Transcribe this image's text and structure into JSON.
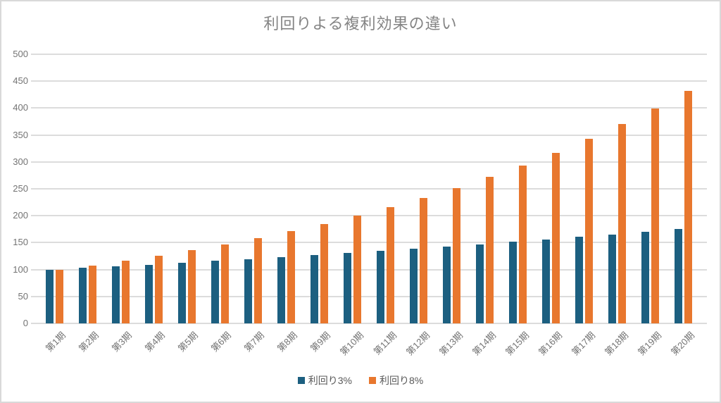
{
  "chart_data": {
    "type": "bar",
    "title": "利回りよる複利効果の違い",
    "xlabel": "",
    "ylabel": "",
    "ylim": [
      0,
      500
    ],
    "ytick_step": 50,
    "yticks": [
      "0",
      "50",
      "100",
      "150",
      "200",
      "250",
      "300",
      "350",
      "400",
      "450",
      "500"
    ],
    "grid": "horizontal",
    "legend_position": "bottom-center",
    "categories": [
      "第1期",
      "第2期",
      "第3期",
      "第4期",
      "第5期",
      "第6期",
      "第7期",
      "第8期",
      "第9期",
      "第10期",
      "第11期",
      "第12期",
      "第13期",
      "第14期",
      "第15期",
      "第16期",
      "第17期",
      "第18期",
      "第19期",
      "第20期"
    ],
    "series": [
      {
        "name": "利回り3%",
        "color": "#1c5f80",
        "values": [
          100,
          103,
          106.09,
          109.27,
          112.55,
          115.93,
          119.41,
          122.99,
          126.68,
          130.48,
          134.39,
          138.42,
          142.58,
          146.85,
          151.26,
          155.8,
          160.47,
          165.28,
          170.24,
          175.35
        ]
      },
      {
        "name": "利回り8%",
        "color": "#e8772e",
        "values": [
          100,
          108,
          116.64,
          125.97,
          136.05,
          146.93,
          158.69,
          171.38,
          185.09,
          199.9,
          215.89,
          233.16,
          251.82,
          271.96,
          293.72,
          317.22,
          342.59,
          370.0,
          399.6,
          431.57
        ]
      }
    ]
  }
}
